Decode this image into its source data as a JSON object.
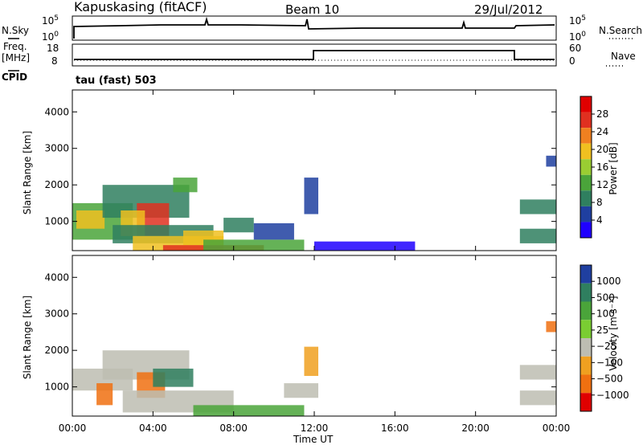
{
  "header": {
    "station": "Kapuskasing (fitACF)",
    "beam": "Beam 10",
    "date": "29/Jul/2012"
  },
  "params": {
    "nsky_label": "N.Sky",
    "nsearch_label": "N.Search",
    "freq_label": "Freq.",
    "freq_unit": "[MHz]",
    "nave_label": "Nave",
    "cpid_label": "CPID",
    "cpid_text": "tau (fast) 503",
    "noise_ticks_left": [
      "10^5",
      "10^0"
    ],
    "noise_ticks_right": [
      "10^5",
      "10^0"
    ],
    "freq_ticks": [
      "18",
      "8"
    ],
    "nave_ticks": [
      "60",
      "0"
    ]
  },
  "colors": {
    "power_scale": [
      "#1f00ff",
      "#1f3fa0",
      "#2f7f5f",
      "#4aa43a",
      "#9acd32",
      "#f0c020",
      "#f08020",
      "#e03020",
      "#e00000"
    ],
    "velocity_scale": [
      "#1f3fa0",
      "#2f7f5f",
      "#4aa43a",
      "#7acd32",
      "#bdbdb2",
      "#f0a020",
      "#f07010",
      "#e00000"
    ]
  },
  "chart_data": [
    {
      "type": "heatmap",
      "name": "power",
      "ylabel": "Slant Range [km]",
      "xlabel": "",
      "yticks": [
        "1000",
        "2000",
        "3000",
        "4000"
      ],
      "ylim": [
        200,
        4600
      ],
      "xlim": [
        0,
        24
      ],
      "colorbar_label": "Power [dB]",
      "colorbar_ticks": [
        "4",
        "8",
        "12",
        "16",
        "20",
        "24",
        "28"
      ],
      "colorbar_range": [
        0,
        32
      ],
      "regions": [
        {
          "t0": 0.0,
          "t1": 3.0,
          "r0": 500,
          "r1": 1500,
          "v": 12
        },
        {
          "t0": 0.2,
          "t1": 1.6,
          "r0": 800,
          "r1": 1300,
          "v": 20
        },
        {
          "t0": 1.5,
          "t1": 5.8,
          "r0": 1100,
          "r1": 2000,
          "v": 10
        },
        {
          "t0": 3.2,
          "t1": 4.8,
          "r0": 600,
          "r1": 1500,
          "v": 26
        },
        {
          "t0": 2.4,
          "t1": 3.6,
          "r0": 600,
          "r1": 1300,
          "v": 18
        },
        {
          "t0": 5.0,
          "t1": 6.2,
          "r0": 1800,
          "r1": 2200,
          "v": 14
        },
        {
          "t0": 2.0,
          "t1": 7.0,
          "r0": 400,
          "r1": 900,
          "v": 8
        },
        {
          "t0": 3.0,
          "t1": 7.5,
          "r0": 200,
          "r1": 600,
          "v": 20
        },
        {
          "t0": 5.5,
          "t1": 7.5,
          "r0": 350,
          "r1": 750,
          "v": 18
        },
        {
          "t0": 4.5,
          "t1": 9.5,
          "r0": 200,
          "r1": 350,
          "v": 28
        },
        {
          "t0": 6.5,
          "t1": 11.5,
          "r0": 200,
          "r1": 500,
          "v": 14
        },
        {
          "t0": 7.5,
          "t1": 9.0,
          "r0": 700,
          "r1": 1100,
          "v": 10
        },
        {
          "t0": 9.0,
          "t1": 11.0,
          "r0": 500,
          "r1": 950,
          "v": 6
        },
        {
          "t0": 11.5,
          "t1": 12.2,
          "r0": 1200,
          "r1": 2200,
          "v": 6
        },
        {
          "t0": 12.0,
          "t1": 17.0,
          "r0": 200,
          "r1": 450,
          "v": 3
        },
        {
          "t0": 22.2,
          "t1": 24.0,
          "r0": 1200,
          "r1": 1600,
          "v": 10
        },
        {
          "t0": 22.2,
          "t1": 24.0,
          "r0": 400,
          "r1": 800,
          "v": 8
        },
        {
          "t0": 23.5,
          "t1": 24.0,
          "r0": 2500,
          "r1": 2800,
          "v": 6
        }
      ]
    },
    {
      "type": "heatmap",
      "name": "velocity",
      "ylabel": "Slant Range [km]",
      "xlabel": "Time UT",
      "xticks": [
        "00:00",
        "04:00",
        "08:00",
        "12:00",
        "16:00",
        "20:00",
        "00:00"
      ],
      "yticks": [
        "1000",
        "2000",
        "3000",
        "4000"
      ],
      "ylim": [
        200,
        4600
      ],
      "xlim": [
        0,
        24
      ],
      "colorbar_label": "Velocity [m s⁻¹]",
      "colorbar_ticks": [
        "1000",
        "500",
        "100",
        "25",
        "−25",
        "−100",
        "−500",
        "−1000"
      ],
      "regions": [
        {
          "t0": 0.0,
          "t1": 3.0,
          "r0": 900,
          "r1": 1500,
          "v": 0
        },
        {
          "t0": 1.5,
          "t1": 5.8,
          "r0": 1200,
          "r1": 2000,
          "v": 0
        },
        {
          "t0": 3.2,
          "t1": 4.6,
          "r0": 700,
          "r1": 1400,
          "v": -200
        },
        {
          "t0": 1.2,
          "t1": 2.0,
          "r0": 500,
          "r1": 1100,
          "v": -300
        },
        {
          "t0": 2.5,
          "t1": 8.0,
          "r0": 300,
          "r1": 900,
          "v": 0
        },
        {
          "t0": 4.0,
          "t1": 6.0,
          "r0": 1000,
          "r1": 1500,
          "v": 150
        },
        {
          "t0": 6.0,
          "t1": 11.5,
          "r0": 200,
          "r1": 500,
          "v": 60
        },
        {
          "t0": 10.5,
          "t1": 12.2,
          "r0": 700,
          "r1": 1100,
          "v": 0
        },
        {
          "t0": 11.5,
          "t1": 12.2,
          "r0": 1300,
          "r1": 2100,
          "v": -80
        },
        {
          "t0": 22.2,
          "t1": 24.0,
          "r0": 1200,
          "r1": 1600,
          "v": 0
        },
        {
          "t0": 22.2,
          "t1": 24.0,
          "r0": 500,
          "r1": 900,
          "v": 0
        },
        {
          "t0": 23.5,
          "t1": 24.0,
          "r0": 2500,
          "r1": 2800,
          "v": -150
        }
      ]
    }
  ]
}
